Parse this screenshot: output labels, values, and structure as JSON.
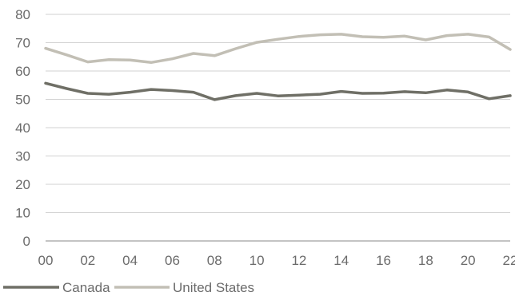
{
  "chart_data": {
    "type": "line",
    "title": "",
    "xlabel": "",
    "ylabel": "",
    "x": [
      2000,
      2001,
      2002,
      2003,
      2004,
      2005,
      2006,
      2007,
      2008,
      2009,
      2010,
      2011,
      2012,
      2013,
      2014,
      2015,
      2016,
      2017,
      2018,
      2019,
      2020,
      2021,
      2022
    ],
    "x_tick_values": [
      2000,
      2002,
      2004,
      2006,
      2008,
      2010,
      2012,
      2014,
      2016,
      2018,
      2020,
      2022
    ],
    "x_tick_labels": [
      "00",
      "02",
      "04",
      "06",
      "08",
      "10",
      "12",
      "14",
      "16",
      "18",
      "20",
      "22"
    ],
    "xlim": [
      2000,
      2022
    ],
    "ylim": [
      0,
      80
    ],
    "y_ticks": [
      0,
      10,
      20,
      30,
      40,
      50,
      60,
      70,
      80
    ],
    "grid": "horizontal",
    "legend_position": "bottom-left",
    "series": [
      {
        "name": "Canada",
        "color": "#6f6f66",
        "values": [
          55.7,
          53.8,
          52.1,
          51.8,
          52.5,
          53.5,
          53.1,
          52.5,
          49.9,
          51.3,
          52.1,
          51.2,
          51.5,
          51.8,
          52.8,
          52.1,
          52.2,
          52.7,
          52.3,
          53.3,
          52.6,
          50.2,
          51.3
        ]
      },
      {
        "name": "United States",
        "color": "#c2bfb5",
        "values": [
          68.0,
          65.7,
          63.2,
          64.0,
          63.9,
          63.0,
          64.3,
          66.2,
          65.4,
          67.9,
          70.1,
          71.2,
          72.2,
          72.8,
          73.0,
          72.1,
          71.9,
          72.3,
          71.0,
          72.5,
          73.0,
          72.0,
          67.6
        ]
      }
    ]
  }
}
